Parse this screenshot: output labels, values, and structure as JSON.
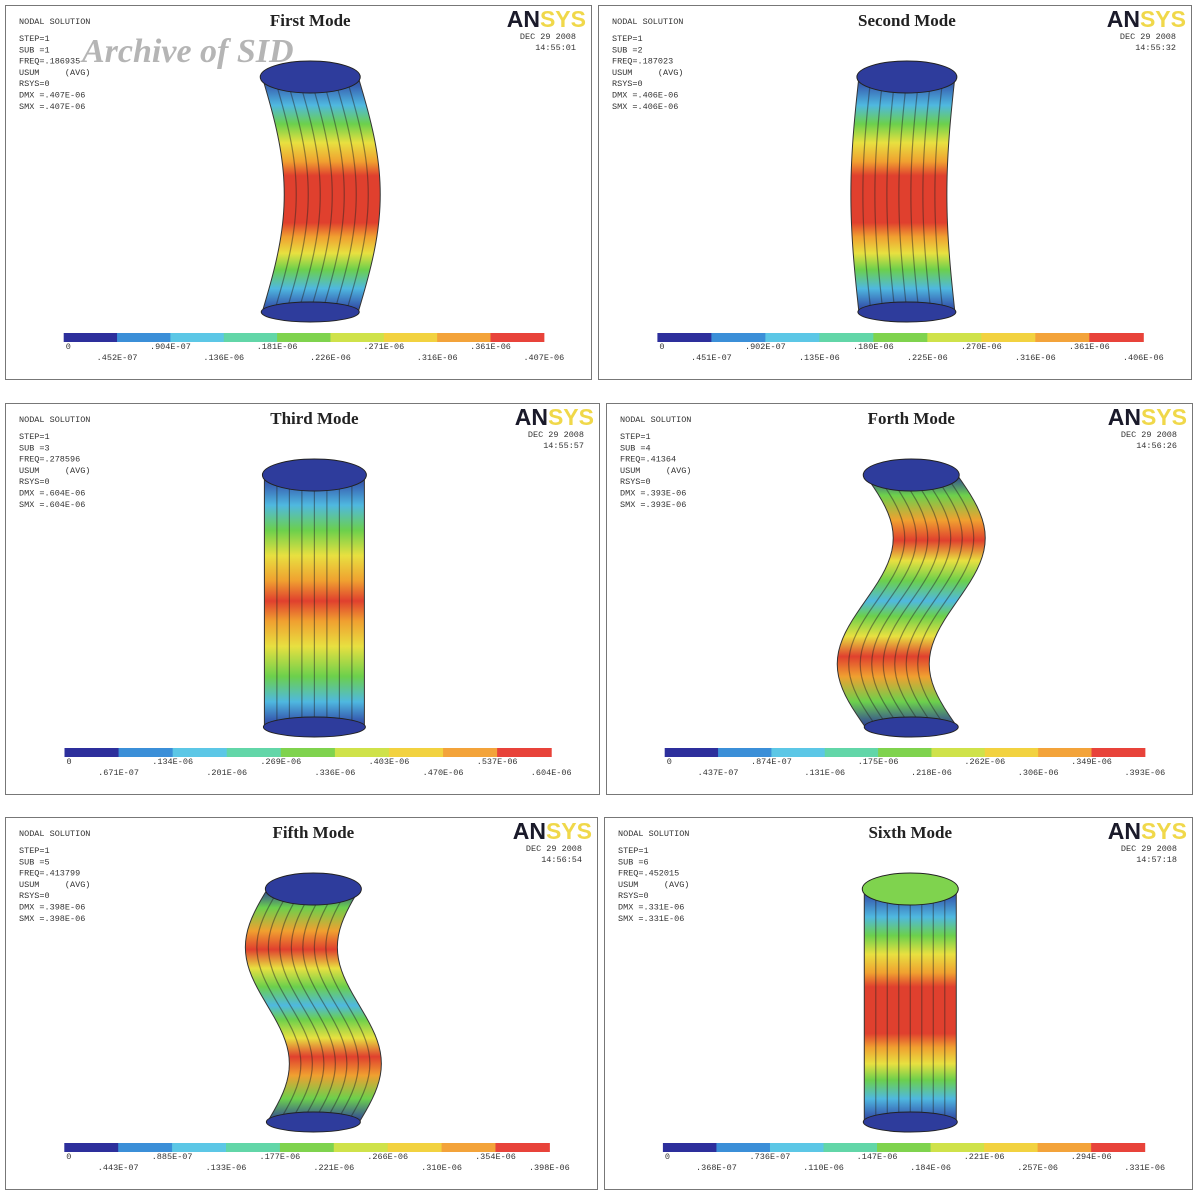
{
  "watermark": "Archive of SID",
  "panels": [
    {
      "title": "First Mode",
      "logo": "ANSYS",
      "date": "DEC 29 2008",
      "time": "14:55:01",
      "info": [
        "NODAL SOLUTION",
        "STEP=1",
        "SUB =1",
        "FREQ=.186935",
        "USUM     (AVG)",
        "RSYS=0",
        "DMX =.407E-06",
        "SMX =.407E-06"
      ],
      "legend": [
        "0",
        ".452E-07",
        ".904E-07",
        ".136E-06",
        ".181E-06",
        ".226E-06",
        ".271E-06",
        ".316E-06",
        ".361E-06",
        ".407E-06"
      ]
    },
    {
      "title": "Second Mode",
      "logo": "ANSYS",
      "date": "DEC 29 2008",
      "time": "14:55:32",
      "info": [
        "NODAL SOLUTION",
        "STEP=1",
        "SUB =2",
        "FREQ=.187023",
        "USUM     (AVG)",
        "RSYS=0",
        "DMX =.406E-06",
        "SMX =.406E-06"
      ],
      "legend": [
        "0",
        ".451E-07",
        ".902E-07",
        ".135E-06",
        ".180E-06",
        ".225E-06",
        ".270E-06",
        ".316E-06",
        ".361E-06",
        ".406E-06"
      ]
    },
    {
      "title": "Third Mode",
      "logo": "ANSYS",
      "date": "DEC 29 2008",
      "time": "14:55:57",
      "info": [
        "NODAL SOLUTION",
        "STEP=1",
        "SUB =3",
        "FREQ=.278596",
        "USUM     (AVG)",
        "RSYS=0",
        "DMX =.604E-06",
        "SMX =.604E-06"
      ],
      "legend": [
        "0",
        ".671E-07",
        ".134E-06",
        ".201E-06",
        ".269E-06",
        ".336E-06",
        ".403E-06",
        ".470E-06",
        ".537E-06",
        ".604E-06"
      ]
    },
    {
      "title": "Forth Mode",
      "logo": "ANSYS",
      "date": "DEC 29 2008",
      "time": "14:56:26",
      "info": [
        "NODAL SOLUTION",
        "STEP=1",
        "SUB =4",
        "FREQ=.41364",
        "USUM     (AVG)",
        "RSYS=0",
        "DMX =.393E-06",
        "SMX =.393E-06"
      ],
      "legend": [
        "0",
        ".437E-07",
        ".874E-07",
        ".131E-06",
        ".175E-06",
        ".218E-06",
        ".262E-06",
        ".306E-06",
        ".349E-06",
        ".393E-06"
      ]
    },
    {
      "title": "Fifth Mode",
      "logo": "ANSYS",
      "date": "DEC 29 2008",
      "time": "14:56:54",
      "info": [
        "NODAL SOLUTION",
        "STEP=1",
        "SUB =5",
        "FREQ=.413799",
        "USUM     (AVG)",
        "RSYS=0",
        "DMX =.398E-06",
        "SMX =.398E-06"
      ],
      "legend": [
        "0",
        ".443E-07",
        ".885E-07",
        ".133E-06",
        ".177E-06",
        ".221E-06",
        ".266E-06",
        ".310E-06",
        ".354E-06",
        ".398E-06"
      ]
    },
    {
      "title": "Sixth Mode",
      "logo": "ANSYS",
      "date": "DEC 29 2008",
      "time": "14:57:18",
      "info": [
        "NODAL SOLUTION",
        "STEP=1",
        "SUB =6",
        "FREQ=.452015",
        "USUM     (AVG)",
        "RSYS=0",
        "DMX =.331E-06",
        "SMX =.331E-06"
      ],
      "legend": [
        "0",
        ".368E-07",
        ".736E-07",
        ".110E-06",
        ".147E-06",
        ".184E-06",
        ".221E-06",
        ".257E-06",
        ".294E-06",
        ".331E-06"
      ]
    }
  ]
}
